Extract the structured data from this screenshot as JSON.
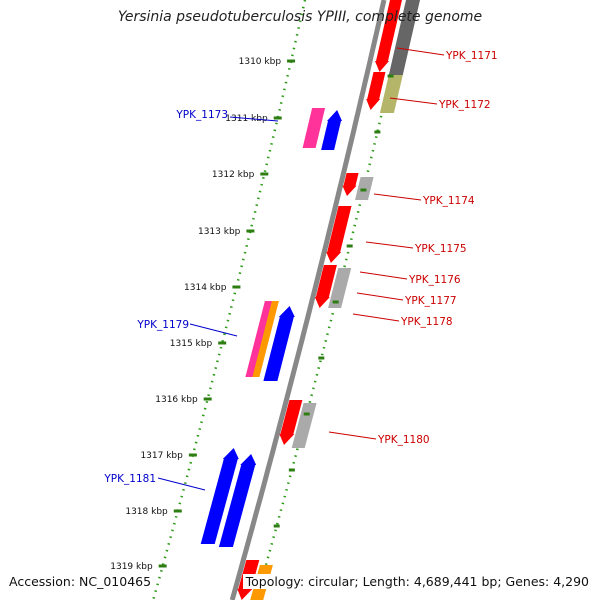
{
  "title": "Yersinia pseudotuberculosis YPIII, complete genome",
  "footer": {
    "accession": "Accession: NC_010465",
    "summary": "Topology: circular; Length: 4,689,441 bp; Genes: 4,290"
  },
  "ticks": [
    {
      "label": "1310 kbp"
    },
    {
      "label": "1311 kbp"
    },
    {
      "label": "1312 kbp"
    },
    {
      "label": "1313 kbp"
    },
    {
      "label": "1314 kbp"
    },
    {
      "label": "1315 kbp"
    },
    {
      "label": "1316 kbp"
    },
    {
      "label": "1317 kbp"
    },
    {
      "label": "1318 kbp"
    },
    {
      "label": "1319 kbp"
    }
  ],
  "gene_labels": [
    {
      "text": "YPK_1171",
      "strand": "reverse",
      "color": "#cc0000"
    },
    {
      "text": "YPK_1172",
      "strand": "reverse",
      "color": "#cc0000"
    },
    {
      "text": "YPK_1173",
      "strand": "forward",
      "color": "#0000cc"
    },
    {
      "text": "YPK_1174",
      "strand": "reverse",
      "color": "#cc0000"
    },
    {
      "text": "YPK_1175",
      "strand": "reverse",
      "color": "#cc0000"
    },
    {
      "text": "YPK_1176",
      "strand": "reverse",
      "color": "#cc0000"
    },
    {
      "text": "YPK_1177",
      "strand": "reverse",
      "color": "#cc0000"
    },
    {
      "text": "YPK_1178",
      "strand": "reverse",
      "color": "#cc0000"
    },
    {
      "text": "YPK_1179",
      "strand": "forward",
      "color": "#0000cc"
    },
    {
      "text": "YPK_1180",
      "strand": "reverse",
      "color": "#cc0000"
    },
    {
      "text": "YPK_1181",
      "strand": "forward",
      "color": "#0000cc"
    }
  ],
  "colors": {
    "backbone": "#888888",
    "forward_cds": "#0000ff",
    "reverse_cds": "#ff0000",
    "forward_label": "#0000cc",
    "reverse_label": "#cc0000",
    "tick": "#2e7d12",
    "track_dots": "#2e9a1a",
    "other_feature": "#aaaaaa",
    "rna_feature": "#ff3399",
    "olive_feature": "#b5b56a",
    "orange_feature": "#ff9900"
  }
}
